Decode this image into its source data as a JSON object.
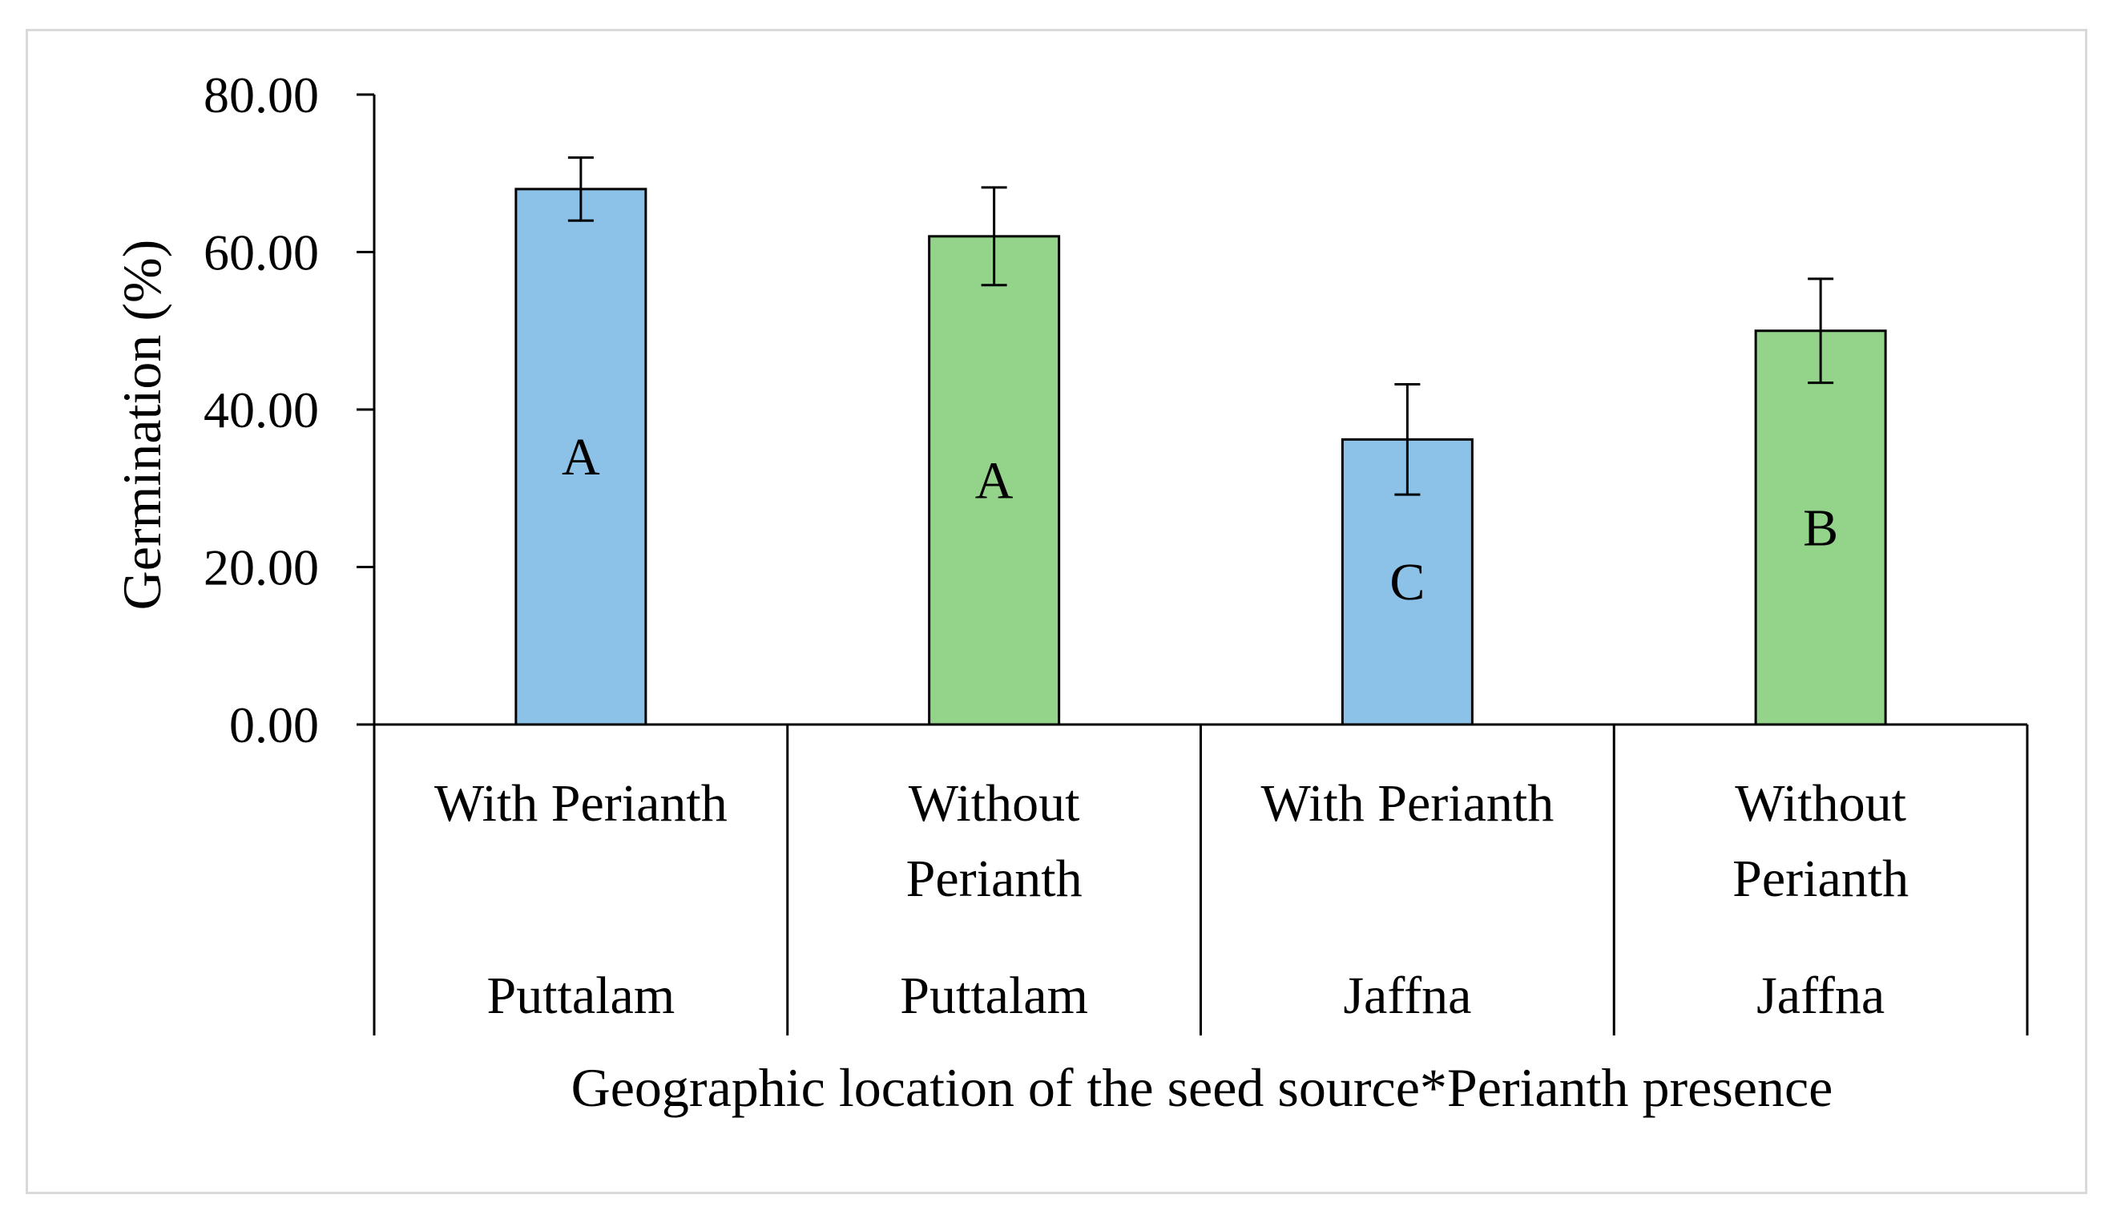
{
  "chart_data": {
    "type": "bar",
    "ylabel": "Germination (%)",
    "xlabel": "Geographic location of the seed source*Periant h presence",
    "ylim": [
      0,
      80
    ],
    "yticks": [
      "0.00",
      "20.00",
      "40.00",
      "60.00",
      "80.00"
    ],
    "grid": false,
    "legend": "none",
    "bars": [
      {
        "category": [
          "With Perianth"
        ],
        "group": "Puttalam",
        "value": 68.0,
        "error": 4.0,
        "letter": "A",
        "color": "#8cc2e8"
      },
      {
        "category": [
          "Without",
          "Perianth"
        ],
        "group": "Puttalam",
        "value": 62.0,
        "error": 6.2,
        "letter": "A",
        "color": "#93d38a"
      },
      {
        "category": [
          "With Perianth"
        ],
        "group": "Jaffna",
        "value": 36.2,
        "error": 7.0,
        "letter": "C",
        "color": "#8cc2e8"
      },
      {
        "category": [
          "Without",
          "Perianth"
        ],
        "group": "Jaffna",
        "value": 50.0,
        "error": 6.6,
        "letter": "B",
        "color": "#93d38a"
      }
    ]
  }
}
